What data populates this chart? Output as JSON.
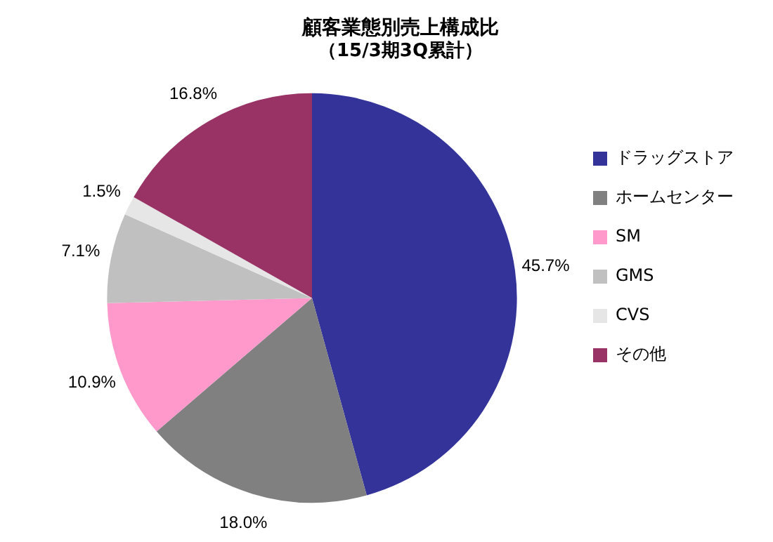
{
  "chart_data": {
    "type": "pie",
    "title": "顧客業態別売上構成比",
    "subtitle": "（15/3期3Q累計）",
    "categories": [
      "ドラッグストア",
      "ホームセンター",
      "SM",
      "GMS",
      "CVS",
      "その他"
    ],
    "values": [
      45.7,
      18.0,
      10.9,
      7.1,
      1.5,
      16.8
    ],
    "value_labels": [
      "45.7%",
      "18.0%",
      "10.9%",
      "7.1%",
      "1.5%",
      "16.8%"
    ],
    "colors": [
      "#333399",
      "#808080",
      "#ff99cc",
      "#c0c0c0",
      "#e6e6e6",
      "#993366"
    ],
    "legend": "right"
  }
}
